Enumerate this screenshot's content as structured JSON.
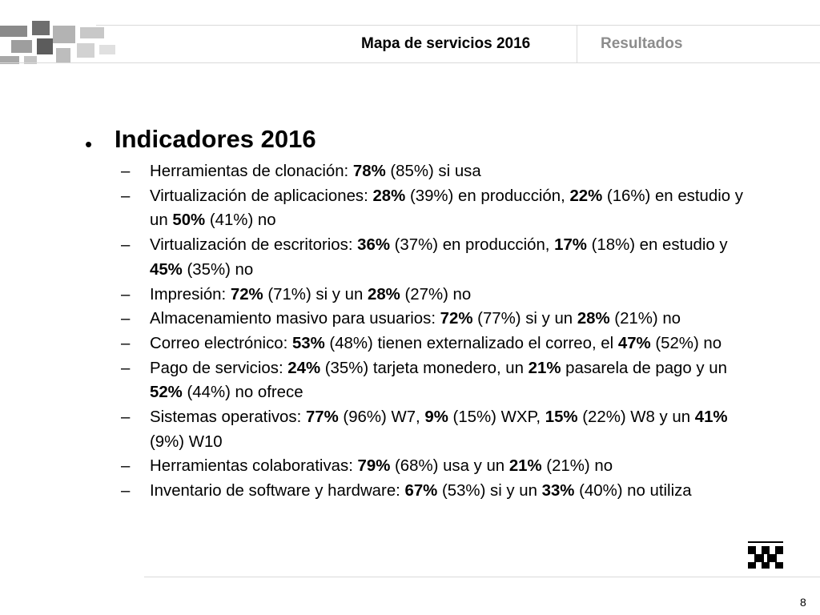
{
  "header": {
    "title": "Mapa de servicios 2016",
    "section": "Resultados"
  },
  "main": {
    "bullet": "•",
    "heading": "Indicadores 2016",
    "dash": "–",
    "items": [
      {
        "segments": [
          {
            "t": "Herramientas de clonación: ",
            "b": false
          },
          {
            "t": "78%",
            "b": true
          },
          {
            "t": " (85%) si usa",
            "b": false
          }
        ]
      },
      {
        "segments": [
          {
            "t": "Virtualización de aplicaciones: ",
            "b": false
          },
          {
            "t": "28%",
            "b": true
          },
          {
            "t": " (39%) en producción, ",
            "b": false
          },
          {
            "t": "22%",
            "b": true
          },
          {
            "t": " (16%) en estudio y un ",
            "b": false
          },
          {
            "t": "50%",
            "b": true
          },
          {
            "t": " (41%) no",
            "b": false
          }
        ]
      },
      {
        "segments": [
          {
            "t": "Virtualización de escritorios: ",
            "b": false
          },
          {
            "t": "36%",
            "b": true
          },
          {
            "t": " (37%) en producción, ",
            "b": false
          },
          {
            "t": "17%",
            "b": true
          },
          {
            "t": " (18%) en estudio y ",
            "b": false
          },
          {
            "t": "45%",
            "b": true
          },
          {
            "t": " (35%) no",
            "b": false
          }
        ]
      },
      {
        "segments": [
          {
            "t": "Impresión: ",
            "b": false
          },
          {
            "t": "72%",
            "b": true
          },
          {
            "t": " (71%) si y un ",
            "b": false
          },
          {
            "t": "28%",
            "b": true
          },
          {
            "t": " (27%) no",
            "b": false
          }
        ]
      },
      {
        "segments": [
          {
            "t": "Almacenamiento masivo para usuarios: ",
            "b": false
          },
          {
            "t": "72%",
            "b": true
          },
          {
            "t": " (77%) si y un ",
            "b": false
          },
          {
            "t": "28%",
            "b": true
          },
          {
            "t": " (21%) no",
            "b": false
          }
        ]
      },
      {
        "segments": [
          {
            "t": "Correo electrónico: ",
            "b": false
          },
          {
            "t": "53%",
            "b": true
          },
          {
            "t": " (48%) tienen externalizado el correo, el ",
            "b": false
          },
          {
            "t": "47%",
            "b": true
          },
          {
            "t": " (52%) no",
            "b": false
          }
        ]
      },
      {
        "segments": [
          {
            "t": "Pago de servicios: ",
            "b": false
          },
          {
            "t": "24%",
            "b": true
          },
          {
            "t": " (35%) tarjeta monedero, un ",
            "b": false
          },
          {
            "t": "21%",
            "b": true
          },
          {
            "t": " pasarela de pago y un ",
            "b": false
          },
          {
            "t": "52%",
            "b": true
          },
          {
            "t": " (44%) no ofrece",
            "b": false
          }
        ]
      },
      {
        "segments": [
          {
            "t": "Sistemas operativos: ",
            "b": false
          },
          {
            "t": "77%",
            "b": true
          },
          {
            "t": " (96%) W7, ",
            "b": false
          },
          {
            "t": "9%",
            "b": true
          },
          {
            "t": " (15%) WXP, ",
            "b": false
          },
          {
            "t": "15%",
            "b": true
          },
          {
            "t": " (22%) W8 y un ",
            "b": false
          },
          {
            "t": "41%",
            "b": true
          },
          {
            "t": " (9%) W10",
            "b": false
          }
        ]
      },
      {
        "segments": [
          {
            "t": "Herramientas colaborativas: ",
            "b": false
          },
          {
            "t": "79%",
            "b": true
          },
          {
            "t": " (68%) usa y un ",
            "b": false
          },
          {
            "t": "21%",
            "b": true
          },
          {
            "t": " (21%) no",
            "b": false
          }
        ]
      },
      {
        "segments": [
          {
            "t": "Inventario de software y hardware: ",
            "b": false
          },
          {
            "t": "67%",
            "b": true
          },
          {
            "t": " (53%) si y un ",
            "b": false
          },
          {
            "t": "33%",
            "b": true
          },
          {
            "t": " (40%) no utiliza",
            "b": false
          }
        ]
      }
    ]
  },
  "footer": {
    "page_number": "8"
  }
}
